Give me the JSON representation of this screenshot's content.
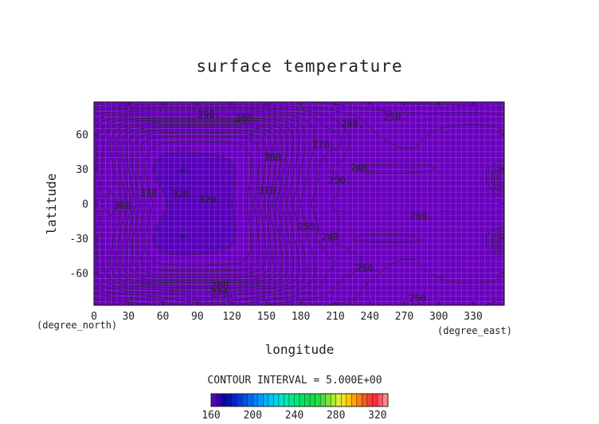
{
  "chart_data": {
    "type": "heatmap",
    "title": "surface temperature",
    "xlabel": "longitude",
    "ylabel": "latitude",
    "x_unit": "(degree_east)",
    "y_unit": "(degree_north)",
    "xlim": [
      0,
      357
    ],
    "ylim": [
      -88,
      88
    ],
    "x_ticks": [
      0,
      30,
      60,
      90,
      120,
      150,
      180,
      210,
      240,
      270,
      300,
      330
    ],
    "y_ticks": [
      60,
      30,
      0,
      -30,
      -60
    ],
    "contour_interval_label": "CONTOUR INTERVAL = 5.000E+00",
    "contour_labels": [
      {
        "text": "290.",
        "lon": 100,
        "lat": 77
      },
      {
        "text": "280.",
        "lon": 133,
        "lat": 74
      },
      {
        "text": "260.",
        "lon": 225,
        "lat": 69
      },
      {
        "text": "250.",
        "lon": 262,
        "lat": 75
      },
      {
        "text": "270.",
        "lon": 200,
        "lat": 51
      },
      {
        "text": "300.",
        "lon": 158,
        "lat": 40
      },
      {
        "text": "240.",
        "lon": 233,
        "lat": 31
      },
      {
        "text": "250.",
        "lon": 214,
        "lat": 20
      },
      {
        "text": "310.",
        "lon": 50,
        "lat": 9
      },
      {
        "text": "320.",
        "lon": 78,
        "lat": 8
      },
      {
        "text": "320.",
        "lon": 101,
        "lat": 3
      },
      {
        "text": "310.",
        "lon": 153,
        "lat": 11
      },
      {
        "text": "300.",
        "lon": 27,
        "lat": -2
      },
      {
        "text": "260.",
        "lon": 285,
        "lat": -11
      },
      {
        "text": "250.",
        "lon": 187,
        "lat": -20
      },
      {
        "text": "240.",
        "lon": 208,
        "lat": -29
      },
      {
        "text": "260.",
        "lon": 238,
        "lat": -56
      },
      {
        "text": "280.",
        "lon": 112,
        "lat": -71
      },
      {
        "text": "270.",
        "lon": 112,
        "lat": -78
      },
      {
        "text": "250.",
        "lon": 284,
        "lat": -82
      }
    ],
    "colorbar": {
      "ticks": [
        160,
        200,
        240,
        280,
        320
      ],
      "min": 160,
      "max": 330,
      "step": 5
    },
    "grid": true
  }
}
